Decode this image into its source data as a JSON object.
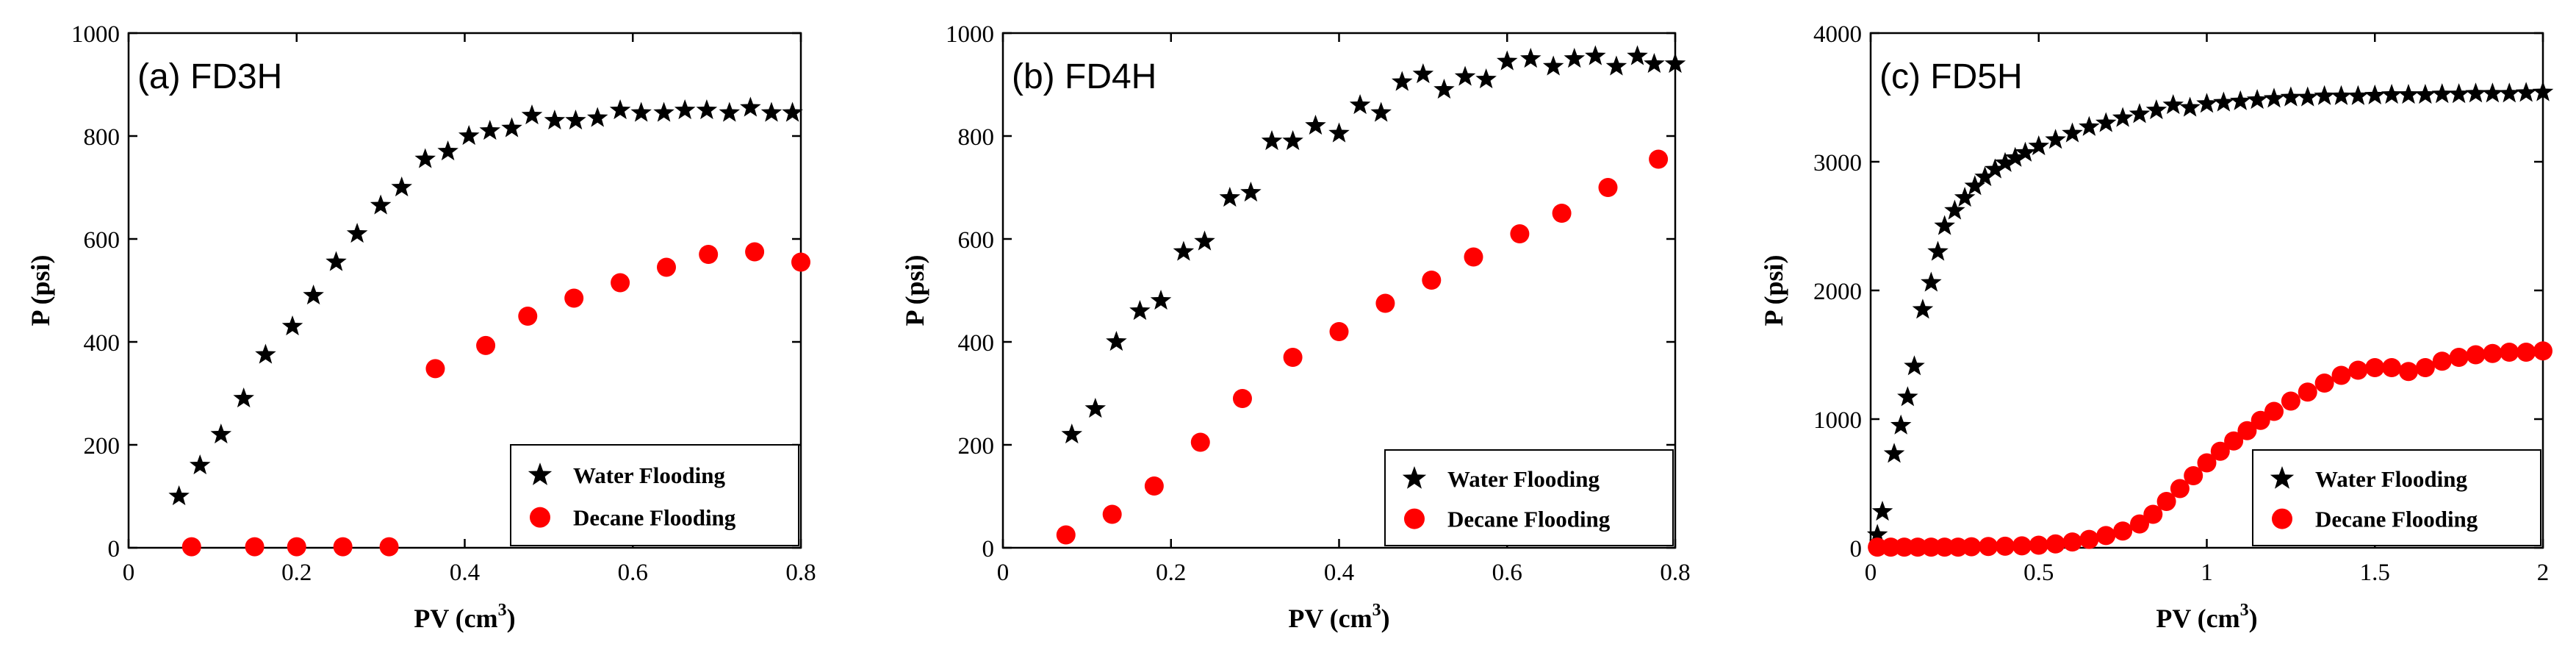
{
  "chart_data": [
    {
      "type": "scatter",
      "title": "(a) FD3H",
      "xlabel": "PV (cm",
      "xlabel_sup": "3",
      "xlabel_end": ")",
      "ylabel": "P (psi)",
      "xlim": [
        0,
        0.8
      ],
      "ylim": [
        0,
        1000
      ],
      "xticks": [
        0,
        0.2,
        0.4,
        0.6,
        0.8
      ],
      "xtick_labels": [
        "0",
        "0.2",
        "0.4",
        "0.6",
        "0.8"
      ],
      "yticks": [
        0,
        200,
        400,
        600,
        800,
        1000
      ],
      "ytick_labels": [
        "0",
        "200",
        "400",
        "600",
        "800",
        "1000"
      ],
      "legend_position": "bottom-right",
      "series": [
        {
          "name": "Water Flooding",
          "marker": "star",
          "color": "#000000",
          "x": [
            0.06,
            0.085,
            0.11,
            0.137,
            0.163,
            0.195,
            0.22,
            0.247,
            0.272,
            0.3,
            0.325,
            0.353,
            0.38,
            0.405,
            0.43,
            0.456,
            0.48,
            0.507,
            0.532,
            0.558,
            0.585,
            0.61,
            0.637,
            0.662,
            0.688,
            0.715,
            0.74,
            0.765,
            0.79
          ],
          "y": [
            100,
            160,
            220,
            290,
            375,
            430,
            490,
            555,
            610,
            665,
            700,
            755,
            770,
            800,
            810,
            815,
            840,
            830,
            830,
            835,
            850,
            845,
            845,
            850,
            850,
            845,
            855,
            845,
            845
          ]
        },
        {
          "name": "Decane Flooding",
          "marker": "circle",
          "color": "#ff0000",
          "x": [
            0.075,
            0.15,
            0.2,
            0.255,
            0.31,
            0.365,
            0.425,
            0.475,
            0.53,
            0.585,
            0.64,
            0.69,
            0.745,
            0.8
          ],
          "y": [
            2,
            2,
            2,
            2,
            2,
            348,
            393,
            450,
            485,
            515,
            545,
            570,
            575,
            555
          ]
        }
      ]
    },
    {
      "type": "scatter",
      "title": "(b) FD4H",
      "xlabel": "PV (cm",
      "xlabel_sup": "3",
      "xlabel_end": ")",
      "ylabel": "P (psi)",
      "xlim": [
        0,
        0.8
      ],
      "ylim": [
        0,
        1000
      ],
      "xticks": [
        0,
        0.2,
        0.4,
        0.6,
        0.8
      ],
      "xtick_labels": [
        "0",
        "0.2",
        "0.4",
        "0.6",
        "0.8"
      ],
      "yticks": [
        0,
        200,
        400,
        600,
        800,
        1000
      ],
      "ytick_labels": [
        "0",
        "200",
        "400",
        "600",
        "800",
        "1000"
      ],
      "legend_position": "bottom-right",
      "series": [
        {
          "name": "Water Flooding",
          "marker": "star",
          "color": "#000000",
          "x": [
            0.082,
            0.11,
            0.135,
            0.163,
            0.188,
            0.215,
            0.24,
            0.27,
            0.295,
            0.32,
            0.345,
            0.372,
            0.4,
            0.425,
            0.45,
            0.475,
            0.5,
            0.525,
            0.55,
            0.575,
            0.6,
            0.628,
            0.655,
            0.68,
            0.705,
            0.73,
            0.755,
            0.775,
            0.8
          ],
          "y": [
            220,
            270,
            400,
            460,
            480,
            575,
            595,
            680,
            690,
            790,
            790,
            820,
            805,
            860,
            845,
            905,
            920,
            890,
            915,
            910,
            945,
            950,
            935,
            950,
            955,
            935,
            955,
            940,
            940
          ]
        },
        {
          "name": "Decane Flooding",
          "marker": "circle",
          "color": "#ff0000",
          "x": [
            0.075,
            0.13,
            0.18,
            0.235,
            0.285,
            0.345,
            0.4,
            0.455,
            0.51,
            0.56,
            0.615,
            0.665,
            0.72,
            0.78
          ],
          "y": [
            25,
            65,
            120,
            205,
            290,
            370,
            420,
            475,
            520,
            565,
            610,
            650,
            700,
            755
          ]
        }
      ]
    },
    {
      "type": "scatter",
      "title": "(c) FD5H",
      "xlabel": "PV (cm",
      "xlabel_sup": "3",
      "xlabel_end": ")",
      "ylabel": "P (psi)",
      "xlim": [
        0,
        2
      ],
      "ylim": [
        0,
        4000
      ],
      "xticks": [
        0,
        0.5,
        1,
        1.5,
        2
      ],
      "xtick_labels": [
        "0",
        "0.5",
        "1",
        "1.5",
        "2"
      ],
      "yticks": [
        0,
        1000,
        2000,
        3000,
        4000
      ],
      "ytick_labels": [
        "0",
        "1000",
        "2000",
        "3000",
        "4000"
      ],
      "legend_position": "bottom-right",
      "series": [
        {
          "name": "Water Flooding",
          "marker": "star",
          "color": "#000000",
          "x": [
            0.02,
            0.035,
            0.07,
            0.09,
            0.11,
            0.13,
            0.155,
            0.18,
            0.2,
            0.22,
            0.25,
            0.28,
            0.31,
            0.34,
            0.37,
            0.4,
            0.43,
            0.46,
            0.5,
            0.55,
            0.6,
            0.65,
            0.7,
            0.75,
            0.8,
            0.85,
            0.9,
            0.95,
            1.0,
            1.05,
            1.1,
            1.15,
            1.2,
            1.25,
            1.3,
            1.35,
            1.4,
            1.45,
            1.5,
            1.55,
            1.6,
            1.65,
            1.7,
            1.75,
            1.8,
            1.85,
            1.9,
            1.95,
            2.0
          ],
          "y": [
            100,
            280,
            730,
            950,
            1170,
            1410,
            1850,
            2060,
            2300,
            2500,
            2620,
            2720,
            2810,
            2880,
            2940,
            2990,
            3030,
            3070,
            3120,
            3170,
            3220,
            3270,
            3300,
            3340,
            3370,
            3400,
            3440,
            3420,
            3450,
            3460,
            3470,
            3480,
            3490,
            3500,
            3500,
            3510,
            3510,
            3510,
            3515,
            3520,
            3520,
            3520,
            3525,
            3525,
            3530,
            3530,
            3530,
            3535,
            3540
          ]
        },
        {
          "name": "Decane Flooding",
          "marker": "circle",
          "color": "#ff0000",
          "x": [
            0.02,
            0.06,
            0.1,
            0.14,
            0.18,
            0.22,
            0.26,
            0.3,
            0.35,
            0.4,
            0.45,
            0.5,
            0.55,
            0.6,
            0.65,
            0.7,
            0.75,
            0.8,
            0.84,
            0.88,
            0.92,
            0.96,
            1.0,
            1.04,
            1.08,
            1.12,
            1.16,
            1.2,
            1.25,
            1.3,
            1.35,
            1.4,
            1.45,
            1.5,
            1.55,
            1.6,
            1.65,
            1.7,
            1.75,
            1.8,
            1.85,
            1.9,
            1.95,
            2.0
          ],
          "y": [
            5,
            5,
            5,
            5,
            5,
            5,
            5,
            8,
            10,
            12,
            15,
            20,
            30,
            45,
            65,
            95,
            130,
            185,
            260,
            360,
            460,
            560,
            660,
            750,
            830,
            910,
            990,
            1060,
            1140,
            1210,
            1280,
            1340,
            1380,
            1400,
            1400,
            1370,
            1400,
            1450,
            1480,
            1500,
            1510,
            1520,
            1520,
            1530
          ]
        }
      ]
    }
  ]
}
